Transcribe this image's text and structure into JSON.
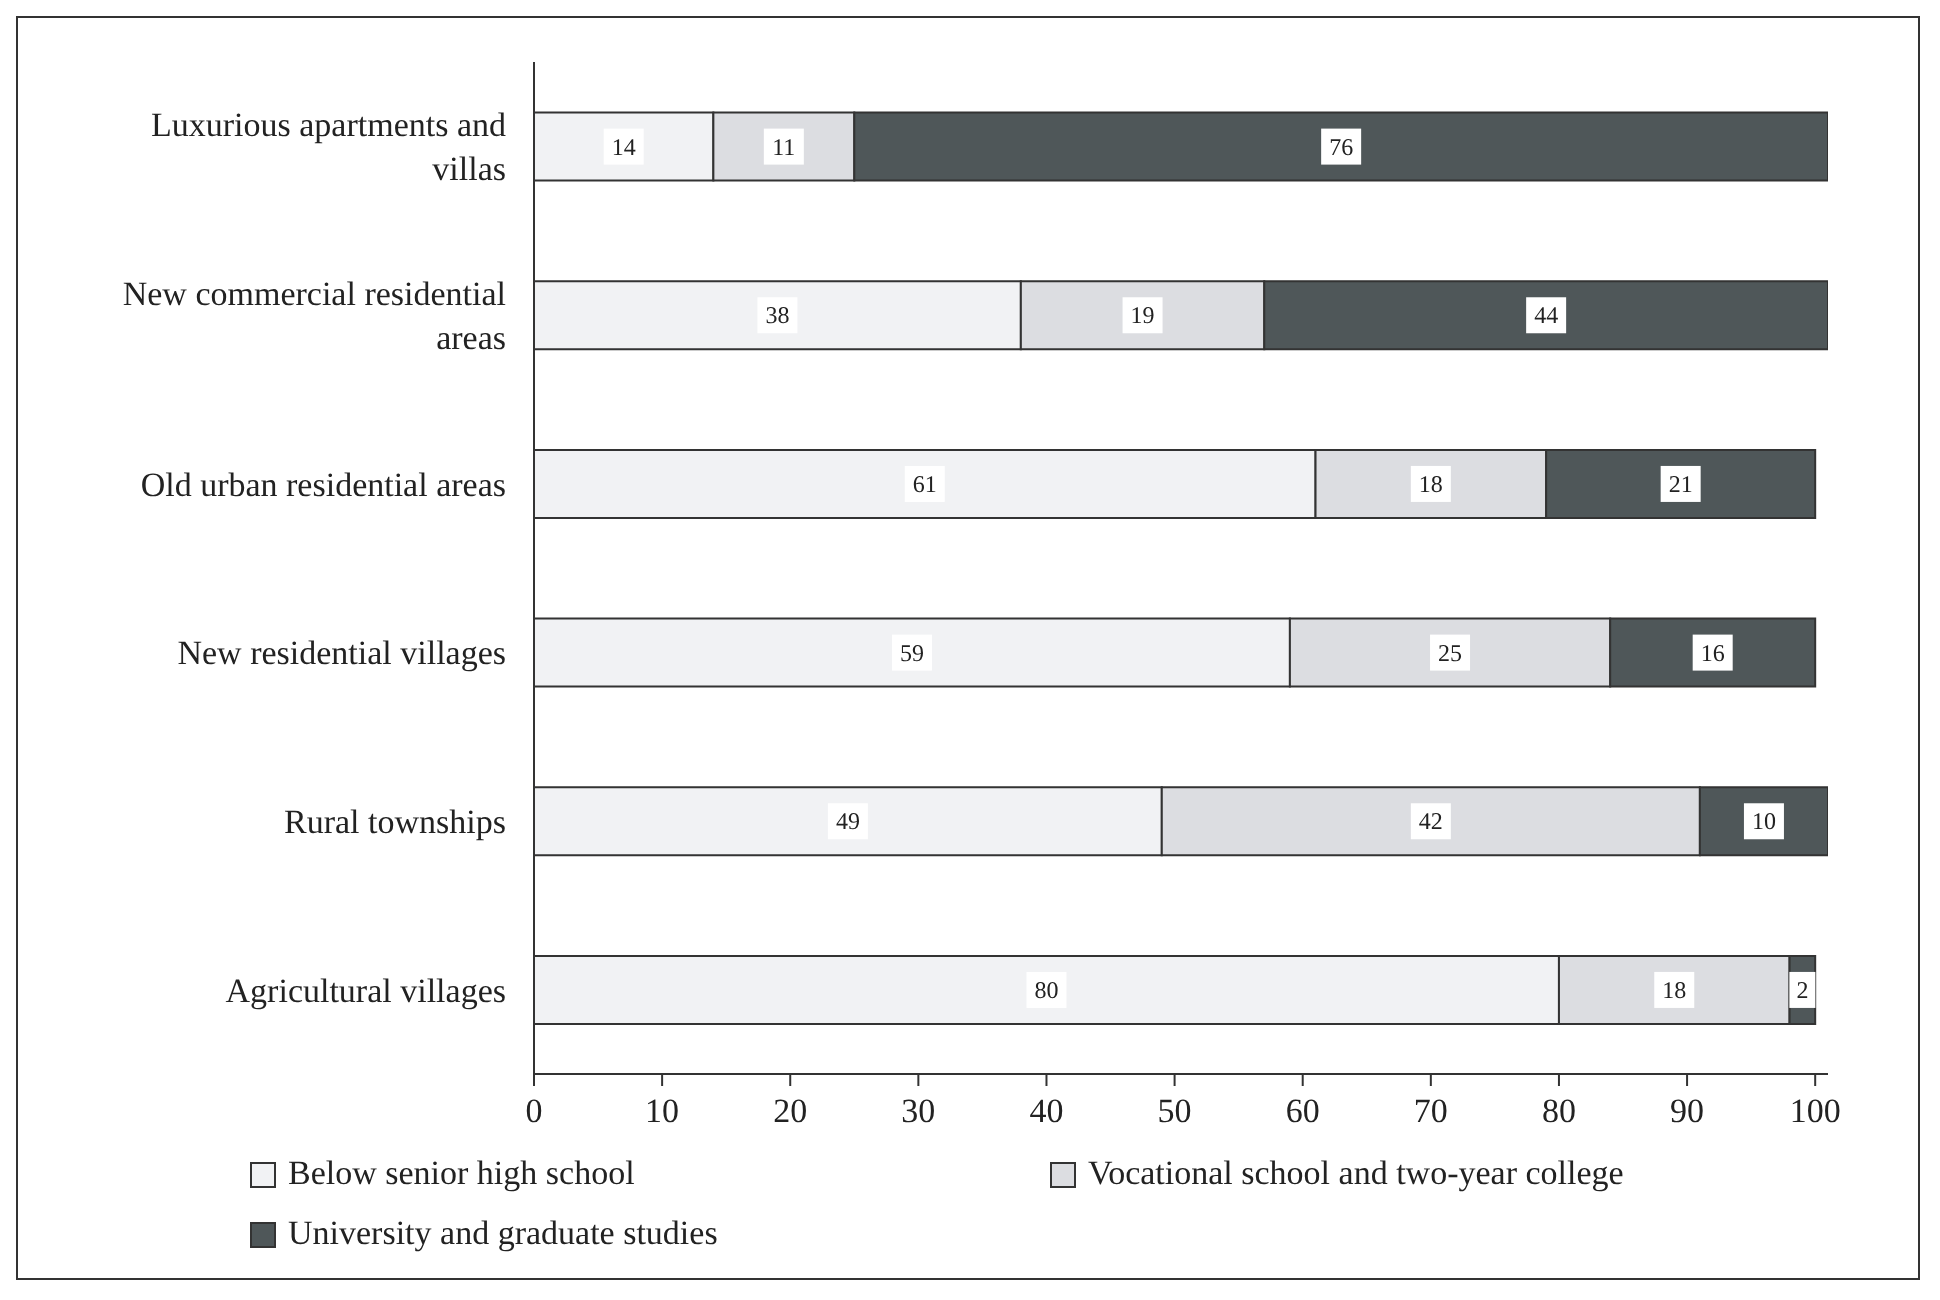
{
  "chart_data": {
    "type": "bar",
    "orientation": "horizontal",
    "stacked": true,
    "data_labels": true,
    "legend": "bottom",
    "categories": [
      "Luxurious apartments and villas",
      "New commercial residential areas",
      "Old urban residential areas",
      "New residential villages",
      "Rural townships",
      "Agricultural villages"
    ],
    "series": [
      {
        "name": "Below senior high school",
        "color": "#f1f2f4",
        "values": [
          14,
          38,
          61,
          59,
          49,
          80
        ]
      },
      {
        "name": "Vocational school and two-year college",
        "color": "#dcdde1",
        "values": [
          11,
          19,
          18,
          25,
          42,
          18
        ]
      },
      {
        "name": "University and graduate studies",
        "color": "#4f5759",
        "values": [
          76,
          44,
          21,
          16,
          10,
          2
        ]
      }
    ],
    "xlim": [
      0,
      101
    ],
    "xticks": [
      0,
      10,
      20,
      30,
      40,
      50,
      60,
      70,
      80,
      90,
      100
    ]
  }
}
